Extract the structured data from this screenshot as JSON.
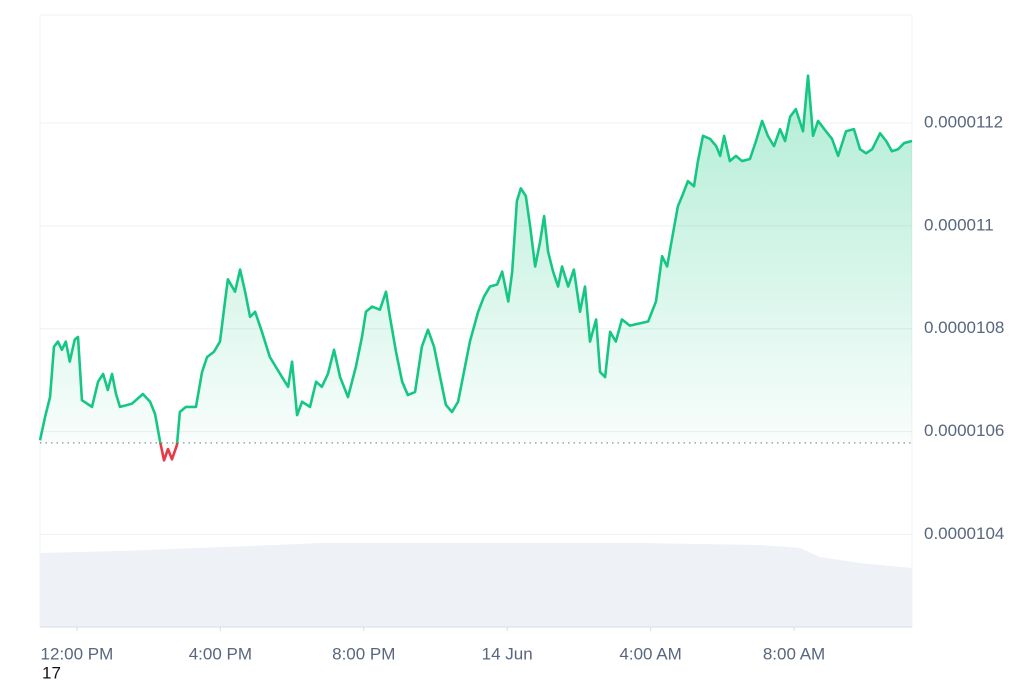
{
  "chart_data": {
    "type": "line",
    "color": "#16c784",
    "down_color": "#ea3943",
    "baseline": 1.0578e-05,
    "grid": true,
    "x": [
      10.97,
      11.11,
      11.25,
      11.36,
      11.47,
      11.58,
      11.69,
      11.8,
      11.94,
      12.03,
      12.14,
      12.42,
      12.59,
      12.73,
      12.86,
      12.98,
      13.09,
      13.2,
      13.53,
      13.84,
      14.04,
      14.18,
      14.32,
      14.43,
      14.54,
      14.65,
      14.79,
      14.87,
      15.04,
      15.32,
      15.49,
      15.63,
      15.82,
      15.99,
      16.13,
      16.21,
      16.41,
      16.55,
      16.69,
      16.83,
      16.97,
      17.16,
      17.38,
      17.72,
      17.89,
      18.0,
      18.14,
      18.28,
      18.5,
      18.67,
      18.83,
      19.0,
      19.17,
      19.34,
      19.56,
      19.78,
      19.95,
      20.06,
      20.23,
      20.45,
      20.62,
      20.73,
      20.9,
      21.07,
      21.23,
      21.43,
      21.62,
      21.79,
      21.96,
      22.13,
      22.29,
      22.46,
      22.63,
      22.74,
      22.96,
      23.19,
      23.35,
      23.52,
      23.72,
      23.86,
      24.03,
      24.14,
      24.27,
      24.38,
      24.52,
      24.64,
      24.78,
      24.92,
      25.03,
      25.14,
      25.28,
      25.42,
      25.53,
      25.7,
      25.86,
      26.03,
      26.17,
      26.31,
      26.48,
      26.59,
      26.73,
      26.87,
      27.03,
      27.2,
      27.42,
      27.93,
      28.15,
      28.32,
      28.46,
      28.6,
      28.76,
      28.88,
      29.04,
      29.21,
      29.32,
      29.46,
      29.66,
      29.83,
      29.94,
      30.05,
      30.21,
      30.38,
      30.55,
      30.77,
      30.94,
      31.11,
      31.27,
      31.44,
      31.61,
      31.75,
      31.89,
      32.05,
      32.25,
      32.39,
      32.53,
      32.67,
      32.89,
      33.06,
      33.23,
      33.45,
      33.67,
      33.84,
      34.01,
      34.18,
      34.4,
      34.57,
      34.73,
      34.9,
      35.07,
      35.29
    ],
    "values": [
      1.0583e-05,
      1.0628e-05,
      1.0667e-05,
      1.0765e-05,
      1.0775e-05,
      1.0759e-05,
      1.0775e-05,
      1.0736e-05,
      1.0779e-05,
      1.0784e-05,
      1.0661e-05,
      1.0648e-05,
      1.0697e-05,
      1.0712e-05,
      1.0681e-05,
      1.0712e-05,
      1.0673e-05,
      1.0648e-05,
      1.0654e-05,
      1.0673e-05,
      1.0658e-05,
      1.0634e-05,
      1.058e-05,
      1.0544e-05,
      1.0566e-05,
      1.0546e-05,
      1.0574e-05,
      1.0638e-05,
      1.0648e-05,
      1.0648e-05,
      1.0716e-05,
      1.0745e-05,
      1.0755e-05,
      1.0775e-05,
      1.0853e-05,
      1.0896e-05,
      1.0872e-05,
      1.0915e-05,
      1.0872e-05,
      1.0823e-05,
      1.0833e-05,
      1.0794e-05,
      1.0745e-05,
      1.0706e-05,
      1.0687e-05,
      1.0736e-05,
      1.0632e-05,
      1.0658e-05,
      1.0648e-05,
      1.0697e-05,
      1.0687e-05,
      1.0712e-05,
      1.0759e-05,
      1.0706e-05,
      1.0667e-05,
      1.0726e-05,
      1.0784e-05,
      1.0833e-05,
      1.0843e-05,
      1.0837e-05,
      1.0872e-05,
      1.0823e-05,
      1.0755e-05,
      1.0697e-05,
      1.0671e-05,
      1.0677e-05,
      1.0765e-05,
      1.0798e-05,
      1.0765e-05,
      1.0706e-05,
      1.0652e-05,
      1.0638e-05,
      1.0658e-05,
      1.0697e-05,
      1.0775e-05,
      1.0833e-05,
      1.0862e-05,
      1.0882e-05,
      1.0886e-05,
      1.0911e-05,
      1.0853e-05,
      1.0911e-05,
      1.1048e-05,
      1.1073e-05,
      1.1058e-05,
      1.0999e-05,
      1.0921e-05,
      1.097e-05,
      1.1019e-05,
      1.095e-05,
      1.0911e-05,
      1.0882e-05,
      1.0921e-05,
      1.0882e-05,
      1.0915e-05,
      1.0833e-05,
      1.0882e-05,
      1.0775e-05,
      1.0818e-05,
      1.0716e-05,
      1.0706e-05,
      1.0794e-05,
      1.0775e-05,
      1.0818e-05,
      1.0806e-05,
      1.0814e-05,
      1.0853e-05,
      1.0941e-05,
      1.0921e-05,
      1.0976e-05,
      1.1038e-05,
      1.1058e-05,
      1.1087e-05,
      1.1077e-05,
      1.1126e-05,
      1.1175e-05,
      1.1169e-05,
      1.1155e-05,
      1.1136e-05,
      1.1175e-05,
      1.1126e-05,
      1.1136e-05,
      1.1126e-05,
      1.113e-05,
      1.1165e-05,
      1.1204e-05,
      1.1175e-05,
      1.1155e-05,
      1.1188e-05,
      1.1165e-05,
      1.1212e-05,
      1.1227e-05,
      1.1184e-05,
      1.1292e-05,
      1.1175e-05,
      1.1204e-05,
      1.1184e-05,
      1.1169e-05,
      1.1136e-05,
      1.1184e-05,
      1.1188e-05,
      1.1149e-05,
      1.1141e-05,
      1.1149e-05,
      1.118e-05,
      1.1165e-05,
      1.1145e-05,
      1.1149e-05,
      1.1161e-05,
      1.1165e-05
    ],
    "xlim": [
      10.97,
      35.29
    ],
    "xticks": [
      {
        "value": 12,
        "label": "12:00 PM"
      },
      {
        "value": 16,
        "label": "4:00 PM"
      },
      {
        "value": 20,
        "label": "8:00 PM"
      },
      {
        "value": 24,
        "label": "14 Jun"
      },
      {
        "value": 28,
        "label": "4:00 AM"
      },
      {
        "value": 32,
        "label": "8:00 AM"
      }
    ],
    "ylim": [
      1.022e-05,
      1.141e-05
    ],
    "yticks": [
      1.04e-05,
      1.06e-05,
      1.08e-05,
      1.1e-05,
      1.12e-05
    ],
    "footer_text": "17"
  }
}
